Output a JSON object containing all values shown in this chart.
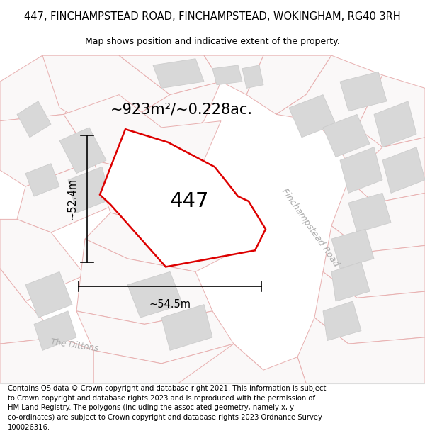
{
  "title_line1": "447, FINCHAMPSTEAD ROAD, FINCHAMPSTEAD, WOKINGHAM, RG40 3RH",
  "title_line2": "Map shows position and indicative extent of the property.",
  "title_fontsize": 10.5,
  "subtitle_fontsize": 9,
  "footer_fontsize": 7.2,
  "map_bg": "#faf8f8",
  "cadastral_edge": "#e8b0b0",
  "cadastral_fill": "#faf8f8",
  "building_fill": "#d8d8d8",
  "building_edge": "#cccccc",
  "highlight_color": "#dd0000",
  "highlight_lw": 1.8,
  "area_text": "~923m²/~0.228ac.",
  "label_447": "447",
  "dim_width_label": "~54.5m",
  "dim_height_label": "~52.4m",
  "road_label": "Finchampstead Road",
  "dittons_label": "The Dittons"
}
